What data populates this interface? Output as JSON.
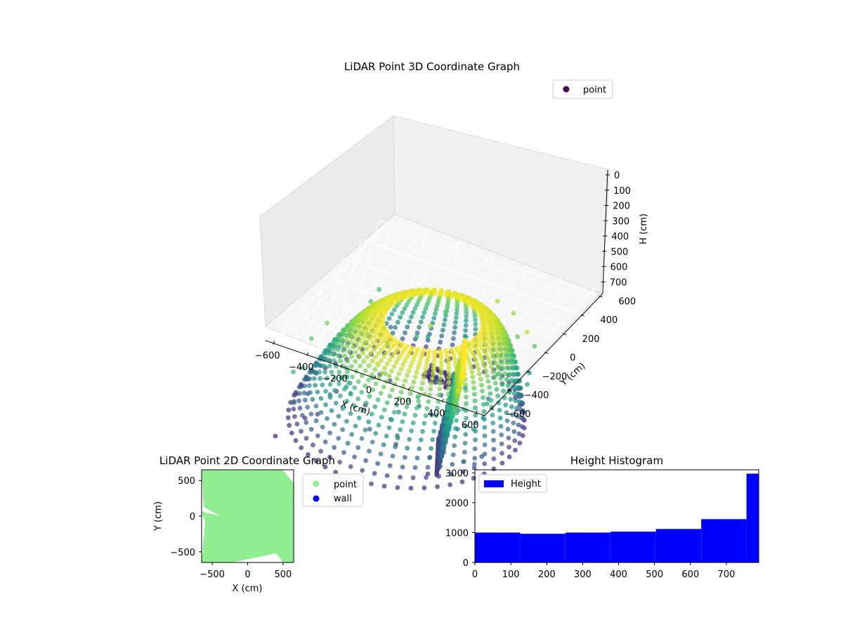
{
  "figure": {
    "background": "#ffffff"
  },
  "chart_data": [
    {
      "type": "scatter",
      "subtype": "scatter3d",
      "title": "LiDAR Point 3D Coordinate Graph",
      "xlabel": "X (cm)",
      "ylabel": "Y (cm)",
      "zlabel": "H (cm)",
      "xticks": [
        "−600",
        "−400",
        "−200",
        "0",
        "200",
        "400",
        "600"
      ],
      "yticks": [
        "−600",
        "−400",
        "−200",
        "0",
        "200",
        "400",
        "600"
      ],
      "zticks": [
        "0",
        "100",
        "200",
        "300",
        "400",
        "500",
        "600",
        "700"
      ],
      "xlim": [
        -650,
        650
      ],
      "ylim": [
        -650,
        650
      ],
      "zlim": [
        0,
        780
      ],
      "z_axis_inverted": true,
      "colormap": "viridis",
      "legend": {
        "entries": [
          {
            "label": "point",
            "color": "#440154"
          }
        ],
        "position": "upper right"
      },
      "series": [
        {
          "name": "point"
        }
      ],
      "grid": true
    },
    {
      "type": "scatter",
      "title": "LiDAR Point 2D Coordinate Graph",
      "xlabel": "X (cm)",
      "ylabel": "Y (cm)",
      "xticks": [
        "−500",
        "0",
        "500"
      ],
      "yticks": [
        "−500",
        "0",
        "500"
      ],
      "xlim": [
        -650,
        650
      ],
      "ylim": [
        -650,
        650
      ],
      "legend": {
        "entries": [
          {
            "label": "point",
            "color": "#90ee90"
          },
          {
            "label": "wall",
            "color": "#0000ff"
          }
        ],
        "position": "outside right"
      },
      "series": [
        {
          "name": "point",
          "color": "#90ee90"
        },
        {
          "name": "wall",
          "color": "#0000ff"
        }
      ],
      "grid": false
    },
    {
      "type": "bar",
      "subtype": "histogram",
      "title": "Height Histogram",
      "xlabel": "",
      "ylabel": "",
      "xlim": [
        0,
        790
      ],
      "ylim": [
        0,
        3100
      ],
      "xticks": [
        "0",
        "100",
        "200",
        "300",
        "400",
        "500",
        "600",
        "700"
      ],
      "yticks": [
        "0",
        "1000",
        "2000",
        "3000"
      ],
      "bin_edges": [
        0,
        126,
        252,
        378,
        504,
        630,
        756,
        790
      ],
      "values": [
        1000,
        960,
        1000,
        1030,
        1120,
        1450,
        2970
      ],
      "color": "#0000ff",
      "legend": {
        "entries": [
          {
            "label": "Height",
            "color": "#0000ff"
          }
        ],
        "position": "upper left"
      },
      "series": [
        {
          "name": "Height"
        }
      ],
      "grid": false
    }
  ]
}
